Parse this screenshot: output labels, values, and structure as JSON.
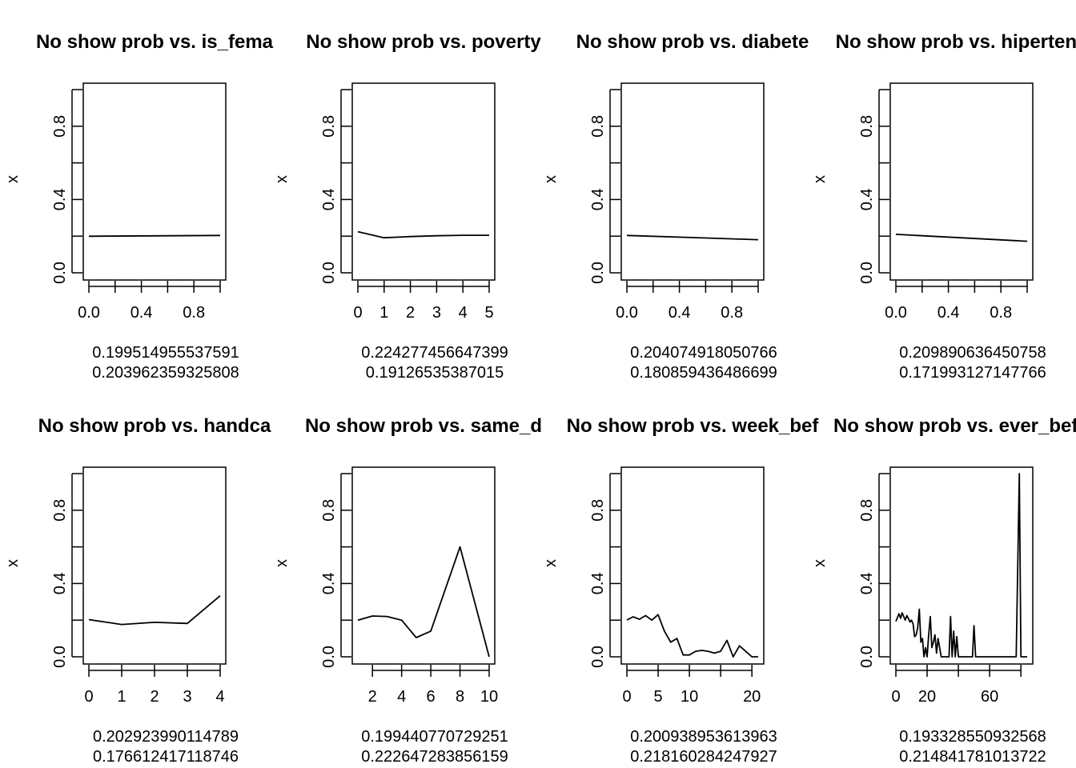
{
  "chart_data": [
    {
      "type": "line",
      "title": "No show prob vs. is_fema",
      "ylabel": "x",
      "xlim": [
        0,
        1
      ],
      "ylim": [
        0,
        1
      ],
      "xticks": [
        0,
        0.2,
        0.4,
        0.6,
        0.8,
        1.0
      ],
      "xtick_labels": [
        "0.0",
        "",
        "0.4",
        "",
        "0.8",
        ""
      ],
      "yticks": [
        0,
        0.2,
        0.4,
        0.6,
        0.8,
        1.0
      ],
      "ytick_labels": [
        "0.0",
        "",
        "0.4",
        "",
        "0.8",
        ""
      ],
      "x": [
        0,
        1
      ],
      "y": [
        0.1995,
        0.204
      ],
      "footer": [
        "0.199514955537591",
        "0.203962359325808"
      ]
    },
    {
      "type": "line",
      "title": "No show prob vs. poverty",
      "ylabel": "x",
      "xlim": [
        0,
        5
      ],
      "ylim": [
        0,
        1
      ],
      "xticks": [
        0,
        1,
        2,
        3,
        4,
        5
      ],
      "xtick_labels": [
        "0",
        "1",
        "2",
        "3",
        "4",
        "5"
      ],
      "yticks": [
        0,
        0.2,
        0.4,
        0.6,
        0.8,
        1.0
      ],
      "ytick_labels": [
        "0.0",
        "",
        "0.4",
        "",
        "0.8",
        ""
      ],
      "x": [
        0,
        1,
        2,
        3,
        4,
        5
      ],
      "y": [
        0.2243,
        0.1913,
        0.198,
        0.202,
        0.205,
        0.205
      ],
      "footer": [
        "0.224277456647399",
        "0.19126535387015"
      ]
    },
    {
      "type": "line",
      "title": "No show prob vs. diabete",
      "ylabel": "x",
      "xlim": [
        0,
        1
      ],
      "ylim": [
        0,
        1
      ],
      "xticks": [
        0,
        0.2,
        0.4,
        0.6,
        0.8,
        1.0
      ],
      "xtick_labels": [
        "0.0",
        "",
        "0.4",
        "",
        "0.8",
        ""
      ],
      "yticks": [
        0,
        0.2,
        0.4,
        0.6,
        0.8,
        1.0
      ],
      "ytick_labels": [
        "0.0",
        "",
        "0.4",
        "",
        "0.8",
        ""
      ],
      "x": [
        0,
        1
      ],
      "y": [
        0.2041,
        0.1809
      ],
      "footer": [
        "0.204074918050766",
        "0.180859436486699"
      ]
    },
    {
      "type": "line",
      "title": "No show prob vs. hipertens",
      "ylabel": "x",
      "xlim": [
        0,
        1
      ],
      "ylim": [
        0,
        1
      ],
      "xticks": [
        0,
        0.2,
        0.4,
        0.6,
        0.8,
        1.0
      ],
      "xtick_labels": [
        "0.0",
        "",
        "0.4",
        "",
        "0.8",
        ""
      ],
      "yticks": [
        0,
        0.2,
        0.4,
        0.6,
        0.8,
        1.0
      ],
      "ytick_labels": [
        "0.0",
        "",
        "0.4",
        "",
        "0.8",
        ""
      ],
      "x": [
        0,
        1
      ],
      "y": [
        0.2099,
        0.172
      ],
      "footer": [
        "0.209890636450758",
        "0.171993127147766"
      ]
    },
    {
      "type": "line",
      "title": "No show prob vs. handca",
      "ylabel": "x",
      "xlim": [
        0,
        4
      ],
      "ylim": [
        0,
        1
      ],
      "xticks": [
        0,
        1,
        2,
        3,
        4
      ],
      "xtick_labels": [
        "0",
        "1",
        "2",
        "3",
        "4"
      ],
      "yticks": [
        0,
        0.2,
        0.4,
        0.6,
        0.8,
        1.0
      ],
      "ytick_labels": [
        "0.0",
        "",
        "0.4",
        "",
        "0.8",
        ""
      ],
      "x": [
        0,
        1,
        2,
        3,
        4
      ],
      "y": [
        0.2029,
        0.1766,
        0.188,
        0.182,
        0.333
      ],
      "footer": [
        "0.202923990114789",
        "0.176612417118746"
      ]
    },
    {
      "type": "line",
      "title": "No show prob vs. same_d",
      "ylabel": "x",
      "xlim": [
        1,
        10
      ],
      "ylim": [
        0,
        1
      ],
      "xticks": [
        2,
        4,
        6,
        8,
        10
      ],
      "xtick_labels": [
        "2",
        "4",
        "6",
        "8",
        "10"
      ],
      "yticks": [
        0,
        0.2,
        0.4,
        0.6,
        0.8,
        1.0
      ],
      "ytick_labels": [
        "0.0",
        "",
        "0.4",
        "",
        "0.8",
        ""
      ],
      "x": [
        1,
        2,
        3,
        4,
        5,
        6,
        7,
        8,
        9,
        10
      ],
      "y": [
        0.1994,
        0.2226,
        0.22,
        0.2,
        0.105,
        0.14,
        0.37,
        0.6,
        0.3,
        0.0
      ],
      "footer": [
        "0.199440770729251",
        "0.222647283856159"
      ]
    },
    {
      "type": "line",
      "title": "No show prob vs. week_bef",
      "ylabel": "x",
      "xlim": [
        0,
        21
      ],
      "ylim": [
        0,
        1
      ],
      "xticks": [
        0,
        5,
        10,
        15,
        20
      ],
      "xtick_labels": [
        "0",
        "5",
        "10",
        "",
        "20"
      ],
      "yticks": [
        0,
        0.2,
        0.4,
        0.6,
        0.8,
        1.0
      ],
      "ytick_labels": [
        "0.0",
        "",
        "0.4",
        "",
        "0.8",
        ""
      ],
      "x": [
        0,
        1,
        2,
        3,
        4,
        5,
        6,
        7,
        8,
        9,
        10,
        11,
        12,
        13,
        14,
        15,
        16,
        17,
        18,
        19,
        20,
        21
      ],
      "y": [
        0.2009,
        0.2182,
        0.205,
        0.225,
        0.2,
        0.23,
        0.14,
        0.08,
        0.1,
        0.01,
        0.01,
        0.03,
        0.035,
        0.03,
        0.02,
        0.03,
        0.09,
        0.0,
        0.06,
        0.03,
        0.0,
        0.0
      ],
      "footer": [
        "0.200938953613963",
        "0.218160284247927"
      ]
    },
    {
      "type": "line",
      "title": "No show prob vs. ever_befo",
      "ylabel": "x",
      "xlim": [
        0,
        84
      ],
      "ylim": [
        0,
        1
      ],
      "xticks": [
        0,
        20,
        40,
        60,
        80
      ],
      "xtick_labels": [
        "0",
        "20",
        "",
        "60",
        ""
      ],
      "yticks": [
        0,
        0.2,
        0.4,
        0.6,
        0.8,
        1.0
      ],
      "ytick_labels": [
        "0.0",
        "",
        "0.4",
        "",
        "0.8",
        ""
      ],
      "x": [
        0,
        1,
        2,
        3,
        4,
        5,
        6,
        7,
        8,
        9,
        10,
        11,
        12,
        13,
        14,
        15,
        16,
        17,
        18,
        19,
        20,
        21,
        22,
        23,
        24,
        25,
        26,
        27,
        28,
        29,
        30,
        31,
        32,
        33,
        34,
        35,
        36,
        37,
        38,
        39,
        40,
        41,
        42,
        43,
        44,
        45,
        46,
        47,
        48,
        49,
        50,
        51,
        52,
        55,
        60,
        65,
        70,
        75,
        77,
        79,
        80,
        81,
        82,
        84
      ],
      "y": [
        0.1933,
        0.2148,
        0.235,
        0.21,
        0.24,
        0.22,
        0.2,
        0.225,
        0.21,
        0.19,
        0.2,
        0.18,
        0.11,
        0.12,
        0.16,
        0.26,
        0.08,
        0.1,
        0.0,
        0.05,
        0.0,
        0.12,
        0.22,
        0.05,
        0.08,
        0.12,
        0.02,
        0.1,
        0.05,
        0.0,
        0.0,
        0.0,
        0.0,
        0.0,
        0.0,
        0.22,
        0.0,
        0.14,
        0.0,
        0.11,
        0.0,
        0.0,
        0.0,
        0.0,
        0.0,
        0.0,
        0.0,
        0.0,
        0.0,
        0.0,
        0.17,
        0.0,
        0.0,
        0.0,
        0.0,
        0.0,
        0.0,
        0.0,
        0.0,
        1.0,
        0.0,
        0.0,
        0.0,
        0.0
      ],
      "footer": [
        "0.193328550932568",
        "0.214841781013722"
      ]
    }
  ]
}
